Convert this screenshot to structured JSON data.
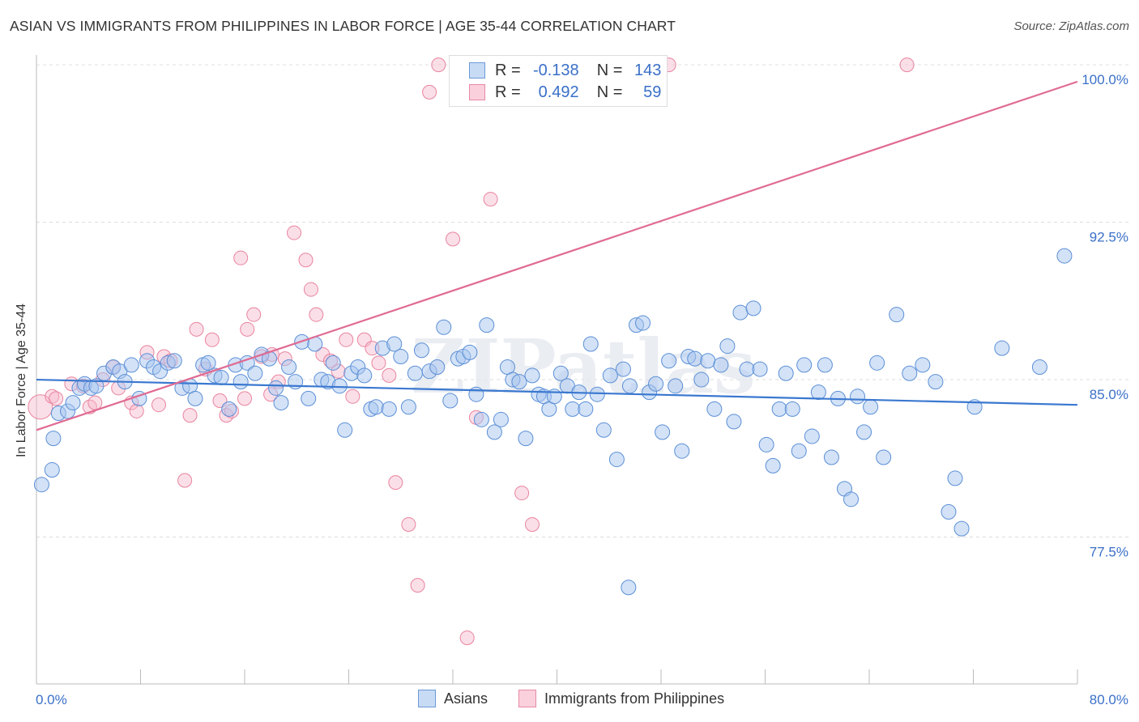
{
  "title": "ASIAN VS IMMIGRANTS FROM PHILIPPINES IN LABOR FORCE | AGE 35-44 CORRELATION CHART",
  "source": "Source: ZipAtlas.com",
  "watermark": "ZIPatlas",
  "stats": [
    {
      "r_label": "R =",
      "r": "-0.138",
      "n_label": "N =",
      "n": "143",
      "color": "#a7c6f0"
    },
    {
      "r_label": "R =",
      "r": "0.492",
      "n_label": "N =",
      "n": "59",
      "color": "#f6b8cb"
    }
  ],
  "legend": [
    {
      "name": "Asians",
      "color": "#a7c6f0"
    },
    {
      "name": "Immigrants from Philippines",
      "color": "#f6b8cb"
    }
  ],
  "chart_data": {
    "type": "scatter",
    "title": "ASIAN VS IMMIGRANTS FROM PHILIPPINES IN LABOR FORCE | AGE 35-44 CORRELATION CHART",
    "xlabel": "",
    "ylabel": "In Labor Force | Age 35-44",
    "xlim": [
      0,
      80
    ],
    "ylim": [
      70.5,
      100.7
    ],
    "x_tick_labels": [
      "0.0%",
      "80.0%"
    ],
    "y_ticks": [
      77.5,
      85.0,
      92.5,
      100.0
    ],
    "y_tick_labels": [
      "77.5%",
      "85.0%",
      "92.5%",
      "100.0%"
    ],
    "grid": true,
    "legend_position": "bottom",
    "colors": {
      "asians_fill": "#a7c6f0",
      "asians_stroke": "#5b8fd6",
      "asians_line": "#3a78d0",
      "phil_fill": "#f6b8cb",
      "phil_stroke": "#e8849f",
      "phil_line": "#e06b93",
      "tick_text": "#3a70c8"
    },
    "series": [
      {
        "name": "Asians",
        "trend": {
          "x": [
            0,
            80
          ],
          "y": [
            85.0,
            83.8
          ]
        },
        "points": [
          [
            0.4,
            80.0
          ],
          [
            1.2,
            80.7
          ],
          [
            1.3,
            82.2
          ],
          [
            1.7,
            83.4
          ],
          [
            2.4,
            83.5
          ],
          [
            2.8,
            83.9
          ],
          [
            3.3,
            84.6
          ],
          [
            3.7,
            84.8
          ],
          [
            4.2,
            84.6
          ],
          [
            4.6,
            84.7
          ],
          [
            5.2,
            85.3
          ],
          [
            5.9,
            85.6
          ],
          [
            6.4,
            85.4
          ],
          [
            6.8,
            84.9
          ],
          [
            7.3,
            85.7
          ],
          [
            7.9,
            84.1
          ],
          [
            8.5,
            85.9
          ],
          [
            9.0,
            85.6
          ],
          [
            9.5,
            85.4
          ],
          [
            10.1,
            85.8
          ],
          [
            10.6,
            85.9
          ],
          [
            11.2,
            84.6
          ],
          [
            11.8,
            84.7
          ],
          [
            12.2,
            84.1
          ],
          [
            12.8,
            85.7
          ],
          [
            13.2,
            85.8
          ],
          [
            13.7,
            85.2
          ],
          [
            14.2,
            85.1
          ],
          [
            14.8,
            83.6
          ],
          [
            15.3,
            85.7
          ],
          [
            15.7,
            84.9
          ],
          [
            16.2,
            85.8
          ],
          [
            16.8,
            85.3
          ],
          [
            17.3,
            86.2
          ],
          [
            17.9,
            86.0
          ],
          [
            18.4,
            84.6
          ],
          [
            18.8,
            83.9
          ],
          [
            19.4,
            85.6
          ],
          [
            19.9,
            84.9
          ],
          [
            20.4,
            86.8
          ],
          [
            20.9,
            84.1
          ],
          [
            21.4,
            86.7
          ],
          [
            21.9,
            85.0
          ],
          [
            22.4,
            84.9
          ],
          [
            22.8,
            85.8
          ],
          [
            23.3,
            84.7
          ],
          [
            23.7,
            82.6
          ],
          [
            24.2,
            85.3
          ],
          [
            24.7,
            85.6
          ],
          [
            25.2,
            85.2
          ],
          [
            25.7,
            83.6
          ],
          [
            26.1,
            83.7
          ],
          [
            26.6,
            86.5
          ],
          [
            27.1,
            83.6
          ],
          [
            27.5,
            86.7
          ],
          [
            28.0,
            86.1
          ],
          [
            28.6,
            83.7
          ],
          [
            29.1,
            85.3
          ],
          [
            29.6,
            86.4
          ],
          [
            30.2,
            85.4
          ],
          [
            30.8,
            85.6
          ],
          [
            31.3,
            87.5
          ],
          [
            31.8,
            84.0
          ],
          [
            32.4,
            86.0
          ],
          [
            32.8,
            86.1
          ],
          [
            33.3,
            86.3
          ],
          [
            33.8,
            84.3
          ],
          [
            34.2,
            83.1
          ],
          [
            34.6,
            87.6
          ],
          [
            35.2,
            82.5
          ],
          [
            35.7,
            83.1
          ],
          [
            36.2,
            85.6
          ],
          [
            36.6,
            85.0
          ],
          [
            37.1,
            84.9
          ],
          [
            37.6,
            82.2
          ],
          [
            38.1,
            85.2
          ],
          [
            38.6,
            84.3
          ],
          [
            39.0,
            84.2
          ],
          [
            39.4,
            83.6
          ],
          [
            39.8,
            84.2
          ],
          [
            40.3,
            85.3
          ],
          [
            40.8,
            84.7
          ],
          [
            41.2,
            83.6
          ],
          [
            41.7,
            84.4
          ],
          [
            42.2,
            83.6
          ],
          [
            42.6,
            86.7
          ],
          [
            43.1,
            84.3
          ],
          [
            43.6,
            82.6
          ],
          [
            44.1,
            85.2
          ],
          [
            44.6,
            81.2
          ],
          [
            45.1,
            85.5
          ],
          [
            45.6,
            84.7
          ],
          [
            46.1,
            87.6
          ],
          [
            46.6,
            87.7
          ],
          [
            47.1,
            84.4
          ],
          [
            47.6,
            84.8
          ],
          [
            48.1,
            82.5
          ],
          [
            48.6,
            85.9
          ],
          [
            49.1,
            84.7
          ],
          [
            49.6,
            81.6
          ],
          [
            50.1,
            86.1
          ],
          [
            50.6,
            86.0
          ],
          [
            51.1,
            85.0
          ],
          [
            51.6,
            85.9
          ],
          [
            52.1,
            83.6
          ],
          [
            52.6,
            85.7
          ],
          [
            53.1,
            86.6
          ],
          [
            53.6,
            83.0
          ],
          [
            54.1,
            88.2
          ],
          [
            54.6,
            85.5
          ],
          [
            55.1,
            88.4
          ],
          [
            55.6,
            85.5
          ],
          [
            56.1,
            81.9
          ],
          [
            56.6,
            80.9
          ],
          [
            57.1,
            83.6
          ],
          [
            57.6,
            85.3
          ],
          [
            58.1,
            83.6
          ],
          [
            58.6,
            81.6
          ],
          [
            59.0,
            85.7
          ],
          [
            59.6,
            82.3
          ],
          [
            60.1,
            84.4
          ],
          [
            60.6,
            85.7
          ],
          [
            61.1,
            81.3
          ],
          [
            61.6,
            84.1
          ],
          [
            62.1,
            79.8
          ],
          [
            62.6,
            79.3
          ],
          [
            63.1,
            84.2
          ],
          [
            63.6,
            82.5
          ],
          [
            64.1,
            83.7
          ],
          [
            64.6,
            85.8
          ],
          [
            65.1,
            81.3
          ],
          [
            66.1,
            88.1
          ],
          [
            67.1,
            85.3
          ],
          [
            68.1,
            85.7
          ],
          [
            69.1,
            84.9
          ],
          [
            70.1,
            78.7
          ],
          [
            70.6,
            80.3
          ],
          [
            71.1,
            77.9
          ],
          [
            72.1,
            83.7
          ],
          [
            74.2,
            86.5
          ],
          [
            77.1,
            85.6
          ],
          [
            79.0,
            90.9
          ],
          [
            45.5,
            75.1
          ]
        ]
      },
      {
        "name": "Immigrants from Philippines",
        "trend": {
          "x": [
            0,
            80
          ],
          "y": [
            82.6,
            99.2
          ]
        },
        "points": [
          [
            0.3,
            83.7
          ],
          [
            1.2,
            84.2
          ],
          [
            1.5,
            84.1
          ],
          [
            2.7,
            84.8
          ],
          [
            3.6,
            84.7
          ],
          [
            4.1,
            83.7
          ],
          [
            4.5,
            83.9
          ],
          [
            5.1,
            85.0
          ],
          [
            5.9,
            85.6
          ],
          [
            6.3,
            84.6
          ],
          [
            7.3,
            83.9
          ],
          [
            7.7,
            83.5
          ],
          [
            8.5,
            86.3
          ],
          [
            9.4,
            83.8
          ],
          [
            9.8,
            86.1
          ],
          [
            10.3,
            85.9
          ],
          [
            11.4,
            80.2
          ],
          [
            11.8,
            83.3
          ],
          [
            12.3,
            87.4
          ],
          [
            13.0,
            85.5
          ],
          [
            13.5,
            86.9
          ],
          [
            14.1,
            84.0
          ],
          [
            14.6,
            83.3
          ],
          [
            15.0,
            83.5
          ],
          [
            15.7,
            90.8
          ],
          [
            16.2,
            87.4
          ],
          [
            16.7,
            88.1
          ],
          [
            17.3,
            86.1
          ],
          [
            18.1,
            86.2
          ],
          [
            18.6,
            84.9
          ],
          [
            19.1,
            86.0
          ],
          [
            19.8,
            92.0
          ],
          [
            20.7,
            90.7
          ],
          [
            21.1,
            89.3
          ],
          [
            21.5,
            88.1
          ],
          [
            22.0,
            86.2
          ],
          [
            22.6,
            85.9
          ],
          [
            23.2,
            85.4
          ],
          [
            23.8,
            86.9
          ],
          [
            24.3,
            84.2
          ],
          [
            25.2,
            86.9
          ],
          [
            25.8,
            86.5
          ],
          [
            26.3,
            85.8
          ],
          [
            27.1,
            85.2
          ],
          [
            27.6,
            80.1
          ],
          [
            28.6,
            78.1
          ],
          [
            29.3,
            75.2
          ],
          [
            30.2,
            98.7
          ],
          [
            30.9,
            100.0
          ],
          [
            32.0,
            91.7
          ],
          [
            33.1,
            72.7
          ],
          [
            33.8,
            83.2
          ],
          [
            34.9,
            93.6
          ],
          [
            37.3,
            79.6
          ],
          [
            38.1,
            78.1
          ],
          [
            48.6,
            100.0
          ],
          [
            66.9,
            100.0
          ],
          [
            18.0,
            84.3
          ],
          [
            16.0,
            84.1
          ]
        ]
      }
    ]
  }
}
